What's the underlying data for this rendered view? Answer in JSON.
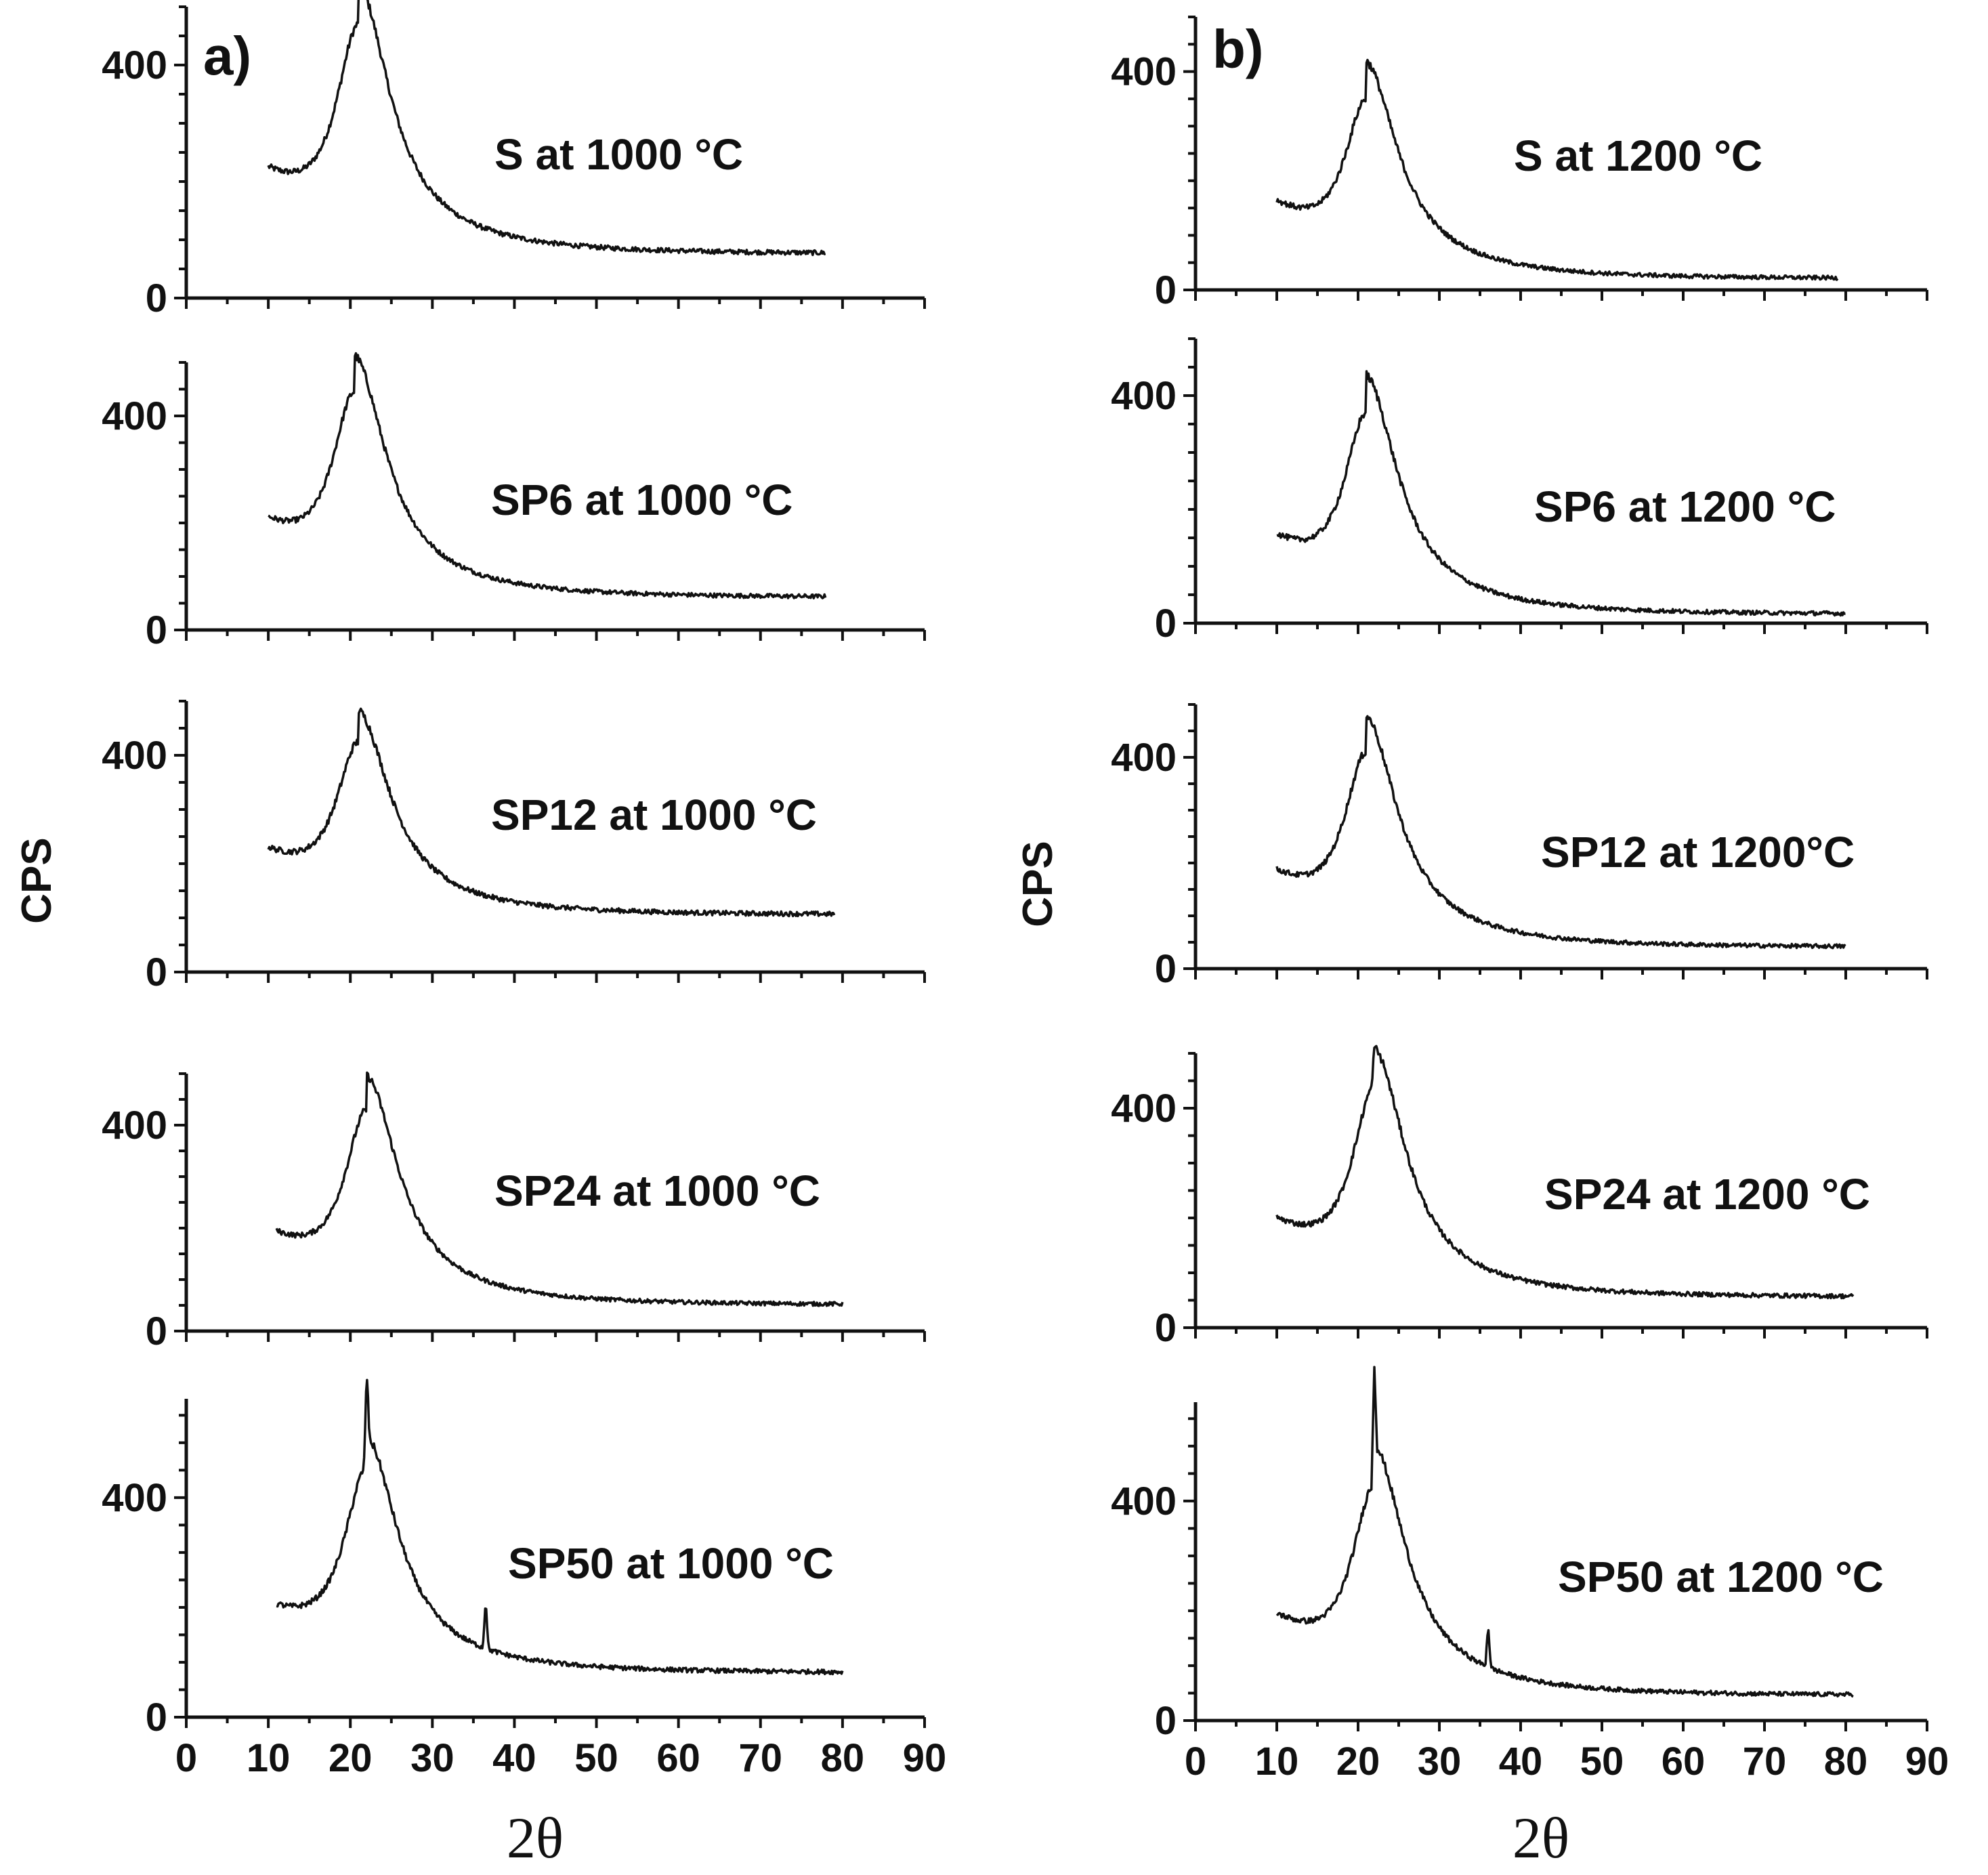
{
  "chart_data": [
    {
      "panel": "a)",
      "type": "line",
      "xlabel": "2θ",
      "ylabel": "CPS",
      "xlim": [
        0,
        90
      ],
      "xticks": [
        "0",
        "10",
        "20",
        "30",
        "40",
        "50",
        "60",
        "70",
        "80",
        "90"
      ],
      "yticks": [
        "0",
        "400"
      ],
      "series": [
        {
          "name": "S at 1000 °C",
          "ylim": [
            0,
            500
          ],
          "params": {
            "base": 75,
            "peak_x": 21,
            "peak_y": 470,
            "start_y": 200,
            "x_start": 10,
            "x_end": 78,
            "sharp": []
          }
        },
        {
          "name": "SP6 at 1000 °C",
          "ylim": [
            0,
            500
          ],
          "params": {
            "base": 60,
            "peak_x": 20.5,
            "peak_y": 445,
            "start_y": 185,
            "x_start": 10,
            "x_end": 78,
            "sharp": []
          }
        },
        {
          "name": "SP12 at 1000 °C",
          "ylim": [
            0,
            500
          ],
          "params": {
            "base": 105,
            "peak_x": 21,
            "peak_y": 425,
            "start_y": 210,
            "x_start": 10,
            "x_end": 79,
            "sharp": []
          }
        },
        {
          "name": "SP24 at 1000 °C",
          "ylim": [
            0,
            500
          ],
          "params": {
            "base": 50,
            "peak_x": 22,
            "peak_y": 430,
            "start_y": 170,
            "x_start": 11,
            "x_end": 80,
            "sharp": []
          }
        },
        {
          "name": "SP50 at 1000 °C",
          "ylim": [
            0,
            580
          ],
          "params": {
            "base": 80,
            "peak_x": 22,
            "peak_y": 455,
            "start_y": 180,
            "x_start": 11,
            "x_end": 80,
            "sharp": [
              [
                22,
                630
              ],
              [
                36.5,
                215
              ]
            ]
          }
        }
      ]
    },
    {
      "panel": "b)",
      "type": "line",
      "xlabel": "2θ",
      "ylabel": "CPS",
      "xlim": [
        0,
        90
      ],
      "xticks": [
        "0",
        "10",
        "20",
        "30",
        "40",
        "50",
        "60",
        "70",
        "80",
        "90"
      ],
      "yticks": [
        "0",
        "400"
      ],
      "series": [
        {
          "name": "S at 1200 °C",
          "ylim": [
            0,
            500
          ],
          "params": {
            "base": 20,
            "peak_x": 21,
            "peak_y": 350,
            "start_y": 145,
            "x_start": 10,
            "x_end": 79,
            "sharp": []
          }
        },
        {
          "name": "SP6 at 1200 °C",
          "ylim": [
            0,
            500
          ],
          "params": {
            "base": 15,
            "peak_x": 21,
            "peak_y": 370,
            "start_y": 135,
            "x_start": 10,
            "x_end": 80,
            "sharp": []
          }
        },
        {
          "name": "SP12 at 1200°C",
          "ylim": [
            0,
            500
          ],
          "params": {
            "base": 40,
            "peak_x": 21,
            "peak_y": 410,
            "start_y": 165,
            "x_start": 10,
            "x_end": 80,
            "sharp": []
          }
        },
        {
          "name": "SP24 at 1200 °C",
          "ylim": [
            0,
            500
          ],
          "params": {
            "base": 55,
            "peak_x": 22,
            "peak_y": 440,
            "start_y": 180,
            "x_start": 10,
            "x_end": 81,
            "sharp": [
              [
                22,
                510
              ]
            ]
          }
        },
        {
          "name": "SP50 at 1200 °C",
          "ylim": [
            0,
            580
          ],
          "params": {
            "base": 45,
            "peak_x": 22,
            "peak_y": 430,
            "start_y": 175,
            "x_start": 10,
            "x_end": 81,
            "sharp": [
              [
                22,
                650
              ],
              [
                36,
                175
              ]
            ]
          }
        }
      ]
    }
  ]
}
